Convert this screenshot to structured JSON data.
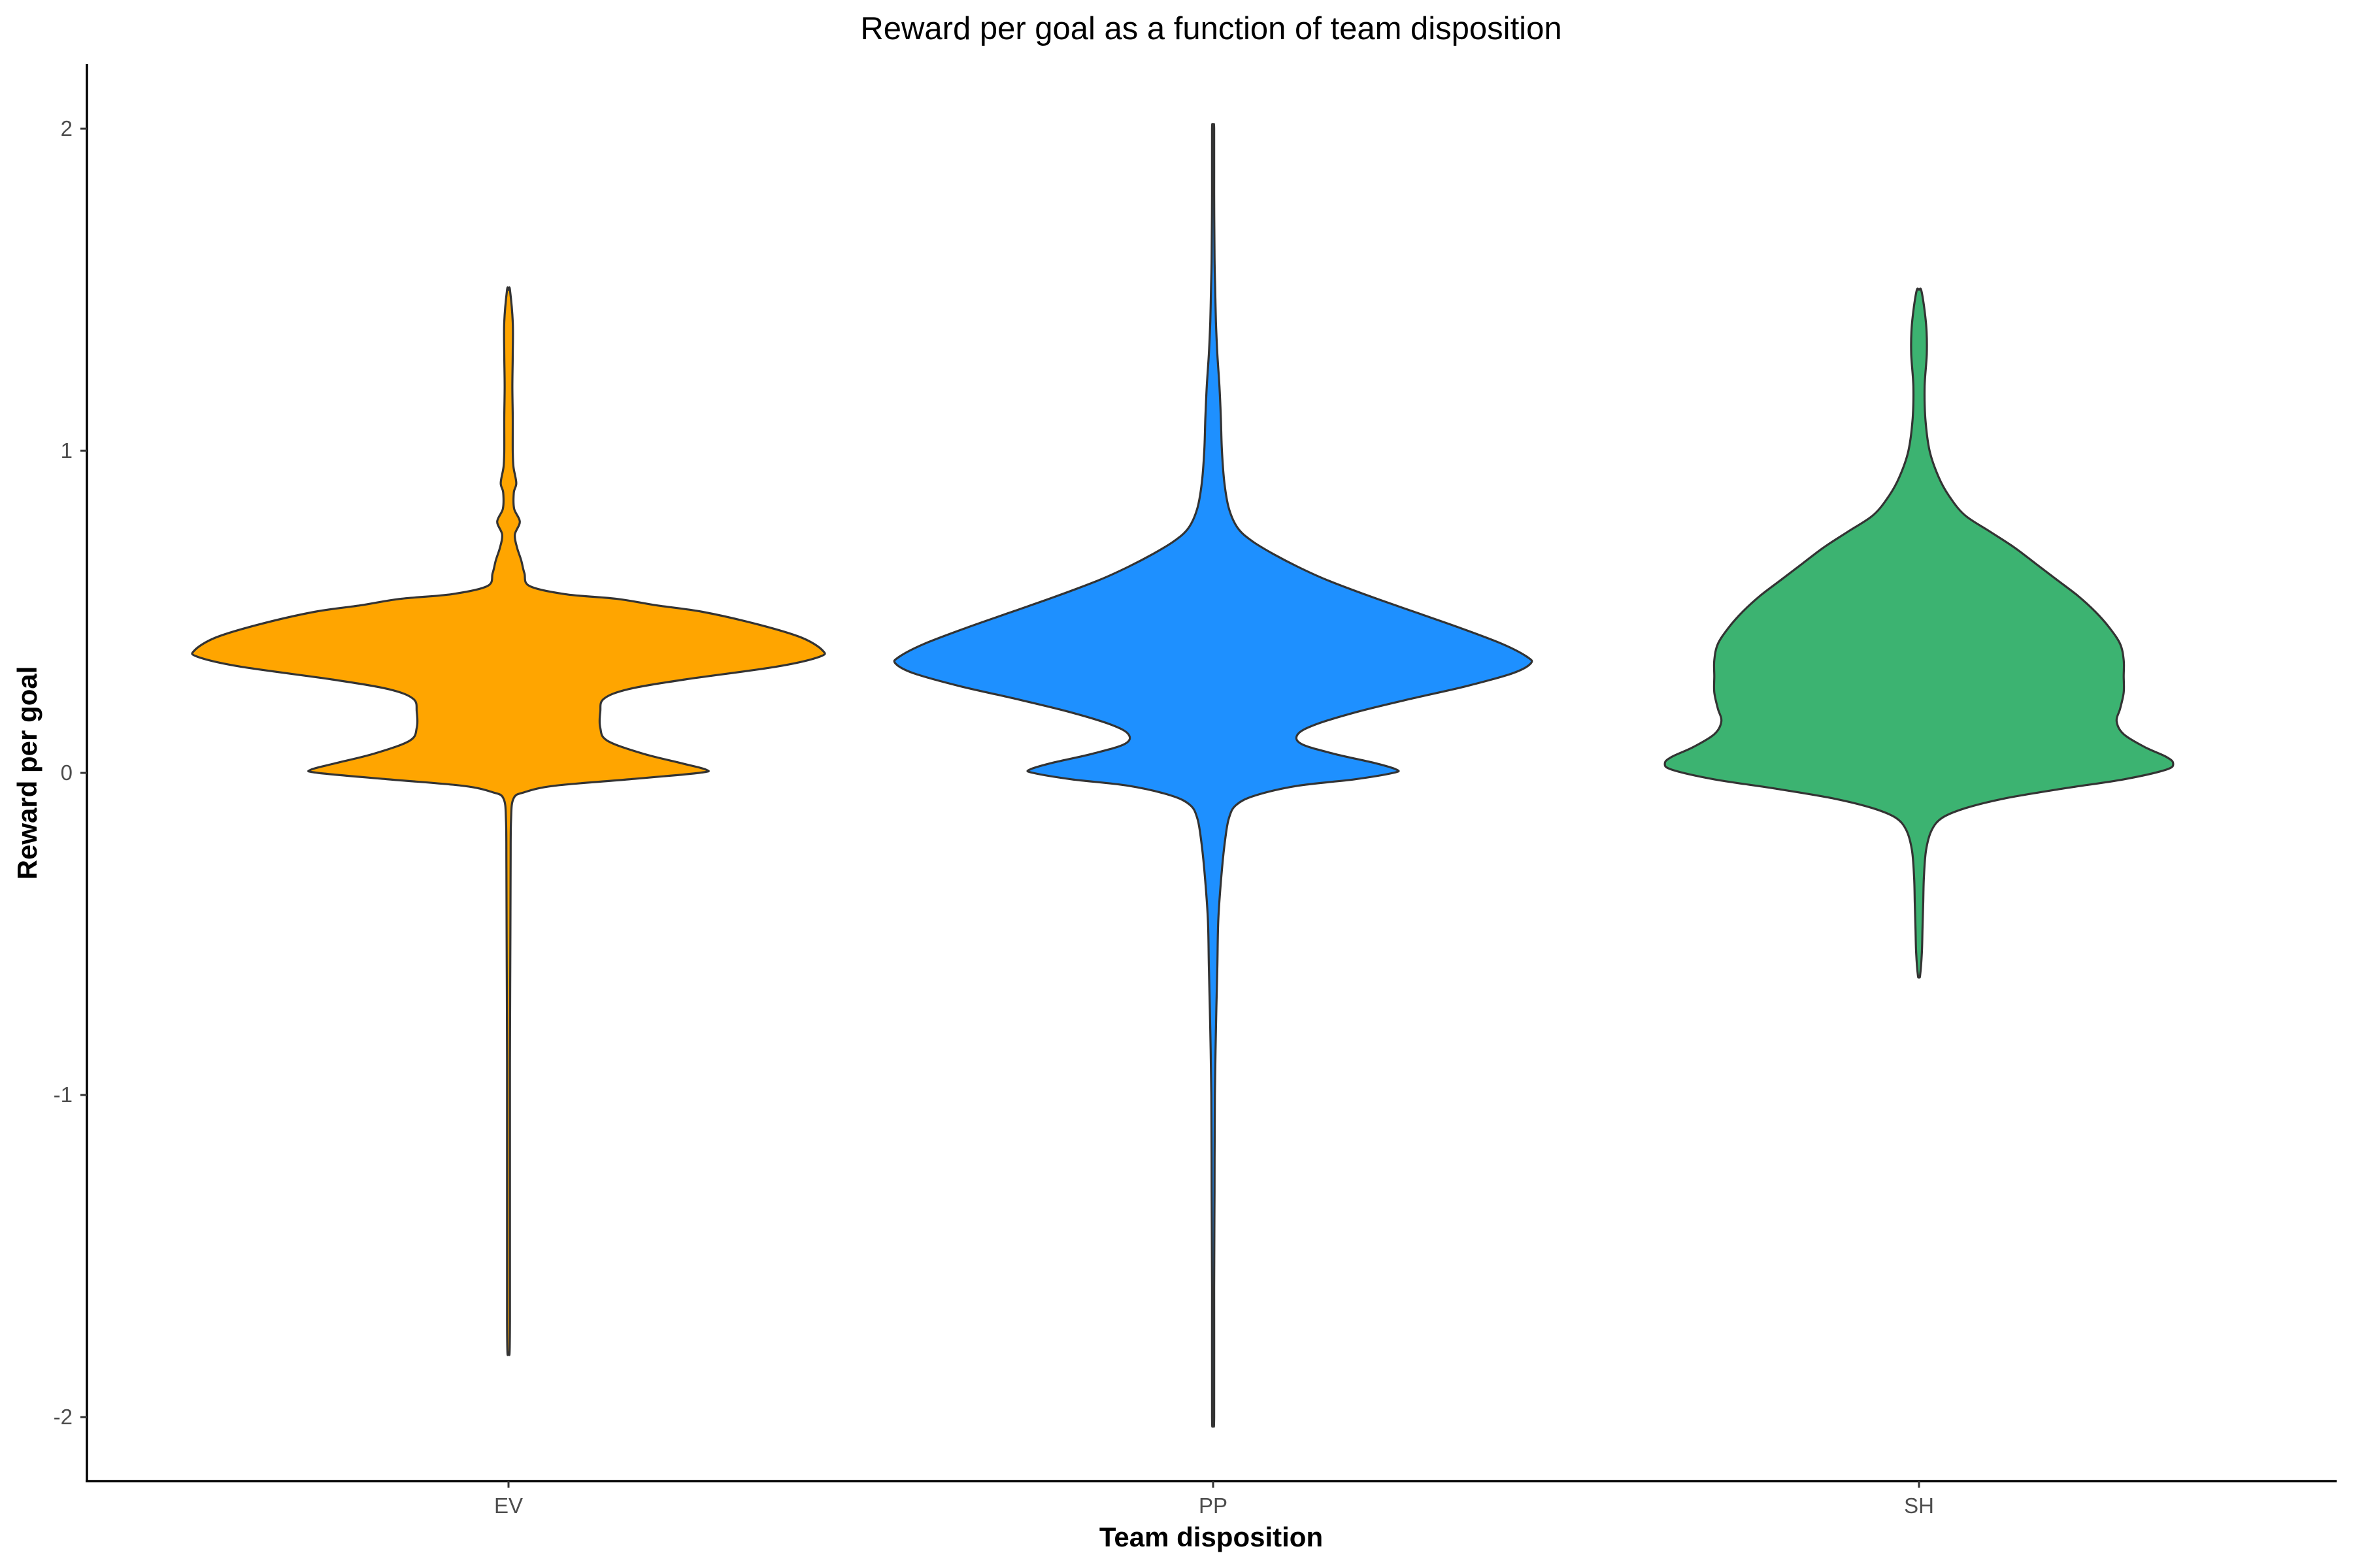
{
  "chart_data": {
    "type": "violin",
    "title": "Reward per goal as a function of team disposition",
    "xlabel": "Team disposition",
    "ylabel": "Reward per goal",
    "ylim": [
      -2.2,
      2.2
    ],
    "yticks": [
      {
        "value": 2,
        "label": "2"
      },
      {
        "value": 1,
        "label": "1"
      },
      {
        "value": 0,
        "label": "0"
      },
      {
        "value": -1,
        "label": "-1"
      },
      {
        "value": -2,
        "label": "-2"
      }
    ],
    "grid": false,
    "legend": "none",
    "categories": [
      "EV",
      "PP",
      "SH"
    ],
    "series": [
      {
        "name": "EV",
        "color": "#FFA500",
        "min": -1.8,
        "max": 1.5,
        "density_profile": [
          [
            1.5,
            0.004
          ],
          [
            1.4,
            0.012
          ],
          [
            1.3,
            0.012
          ],
          [
            1.2,
            0.011
          ],
          [
            1.1,
            0.012
          ],
          [
            1.0,
            0.012
          ],
          [
            0.95,
            0.014
          ],
          [
            0.9,
            0.022
          ],
          [
            0.87,
            0.015
          ],
          [
            0.82,
            0.016
          ],
          [
            0.78,
            0.032
          ],
          [
            0.74,
            0.018
          ],
          [
            0.7,
            0.024
          ],
          [
            0.66,
            0.036
          ],
          [
            0.62,
            0.045
          ],
          [
            0.58,
            0.06
          ],
          [
            0.555,
            0.16
          ],
          [
            0.54,
            0.31
          ],
          [
            0.52,
            0.42
          ],
          [
            0.5,
            0.55
          ],
          [
            0.46,
            0.71
          ],
          [
            0.42,
            0.83
          ],
          [
            0.38,
            0.89
          ],
          [
            0.36,
            0.88
          ],
          [
            0.33,
            0.76
          ],
          [
            0.29,
            0.5
          ],
          [
            0.26,
            0.34
          ],
          [
            0.23,
            0.27
          ],
          [
            0.19,
            0.26
          ],
          [
            0.14,
            0.26
          ],
          [
            0.1,
            0.28
          ],
          [
            0.06,
            0.38
          ],
          [
            0.03,
            0.49
          ],
          [
            0.01,
            0.56
          ],
          [
            0.0,
            0.54
          ],
          [
            -0.02,
            0.34
          ],
          [
            -0.04,
            0.13
          ],
          [
            -0.06,
            0.045
          ],
          [
            -0.08,
            0.014
          ],
          [
            -0.15,
            0.007
          ],
          [
            -0.3,
            0.006
          ],
          [
            -0.6,
            0.005
          ],
          [
            -0.9,
            0.004
          ],
          [
            -1.2,
            0.004
          ],
          [
            -1.5,
            0.004
          ],
          [
            -1.7,
            0.004
          ],
          [
            -1.8,
            0.003
          ]
        ]
      },
      {
        "name": "PP",
        "color": "#1E90FF",
        "min": -2.0,
        "max": 2.0,
        "density_profile": [
          [
            2.0,
            0.003
          ],
          [
            1.8,
            0.003
          ],
          [
            1.6,
            0.004
          ],
          [
            1.5,
            0.006
          ],
          [
            1.4,
            0.008
          ],
          [
            1.3,
            0.012
          ],
          [
            1.2,
            0.018
          ],
          [
            1.1,
            0.022
          ],
          [
            1.0,
            0.025
          ],
          [
            0.9,
            0.032
          ],
          [
            0.82,
            0.045
          ],
          [
            0.76,
            0.07
          ],
          [
            0.72,
            0.11
          ],
          [
            0.68,
            0.17
          ],
          [
            0.64,
            0.24
          ],
          [
            0.6,
            0.32
          ],
          [
            0.55,
            0.44
          ],
          [
            0.5,
            0.57
          ],
          [
            0.45,
            0.7
          ],
          [
            0.4,
            0.82
          ],
          [
            0.36,
            0.89
          ],
          [
            0.34,
            0.9
          ],
          [
            0.31,
            0.85
          ],
          [
            0.27,
            0.72
          ],
          [
            0.23,
            0.56
          ],
          [
            0.19,
            0.41
          ],
          [
            0.15,
            0.29
          ],
          [
            0.12,
            0.24
          ],
          [
            0.09,
            0.25
          ],
          [
            0.06,
            0.34
          ],
          [
            0.03,
            0.46
          ],
          [
            0.01,
            0.52
          ],
          [
            0.0,
            0.51
          ],
          [
            -0.02,
            0.4
          ],
          [
            -0.04,
            0.24
          ],
          [
            -0.07,
            0.12
          ],
          [
            -0.1,
            0.065
          ],
          [
            -0.14,
            0.045
          ],
          [
            -0.2,
            0.035
          ],
          [
            -0.3,
            0.025
          ],
          [
            -0.45,
            0.015
          ],
          [
            -0.6,
            0.012
          ],
          [
            -0.8,
            0.008
          ],
          [
            -1.0,
            0.005
          ],
          [
            -1.3,
            0.004
          ],
          [
            -1.6,
            0.003
          ],
          [
            -2.0,
            0.003
          ]
        ]
      },
      {
        "name": "SH",
        "color": "#3CB371",
        "min": -0.63,
        "max": 1.5,
        "density_profile": [
          [
            1.5,
            0.006
          ],
          [
            1.45,
            0.014
          ],
          [
            1.38,
            0.021
          ],
          [
            1.3,
            0.022
          ],
          [
            1.2,
            0.016
          ],
          [
            1.1,
            0.018
          ],
          [
            1.0,
            0.03
          ],
          [
            0.92,
            0.055
          ],
          [
            0.86,
            0.085
          ],
          [
            0.8,
            0.13
          ],
          [
            0.75,
            0.2
          ],
          [
            0.7,
            0.27
          ],
          [
            0.65,
            0.33
          ],
          [
            0.6,
            0.39
          ],
          [
            0.55,
            0.45
          ],
          [
            0.5,
            0.5
          ],
          [
            0.45,
            0.54
          ],
          [
            0.4,
            0.57
          ],
          [
            0.35,
            0.58
          ],
          [
            0.3,
            0.58
          ],
          [
            0.25,
            0.58
          ],
          [
            0.2,
            0.57
          ],
          [
            0.16,
            0.56
          ],
          [
            0.12,
            0.58
          ],
          [
            0.08,
            0.64
          ],
          [
            0.05,
            0.7
          ],
          [
            0.03,
            0.72
          ],
          [
            0.01,
            0.7
          ],
          [
            -0.02,
            0.58
          ],
          [
            -0.05,
            0.4
          ],
          [
            -0.08,
            0.24
          ],
          [
            -0.11,
            0.13
          ],
          [
            -0.14,
            0.065
          ],
          [
            -0.18,
            0.035
          ],
          [
            -0.24,
            0.02
          ],
          [
            -0.32,
            0.014
          ],
          [
            -0.4,
            0.012
          ],
          [
            -0.48,
            0.01
          ],
          [
            -0.56,
            0.008
          ],
          [
            -0.63,
            0.003
          ]
        ]
      }
    ]
  }
}
